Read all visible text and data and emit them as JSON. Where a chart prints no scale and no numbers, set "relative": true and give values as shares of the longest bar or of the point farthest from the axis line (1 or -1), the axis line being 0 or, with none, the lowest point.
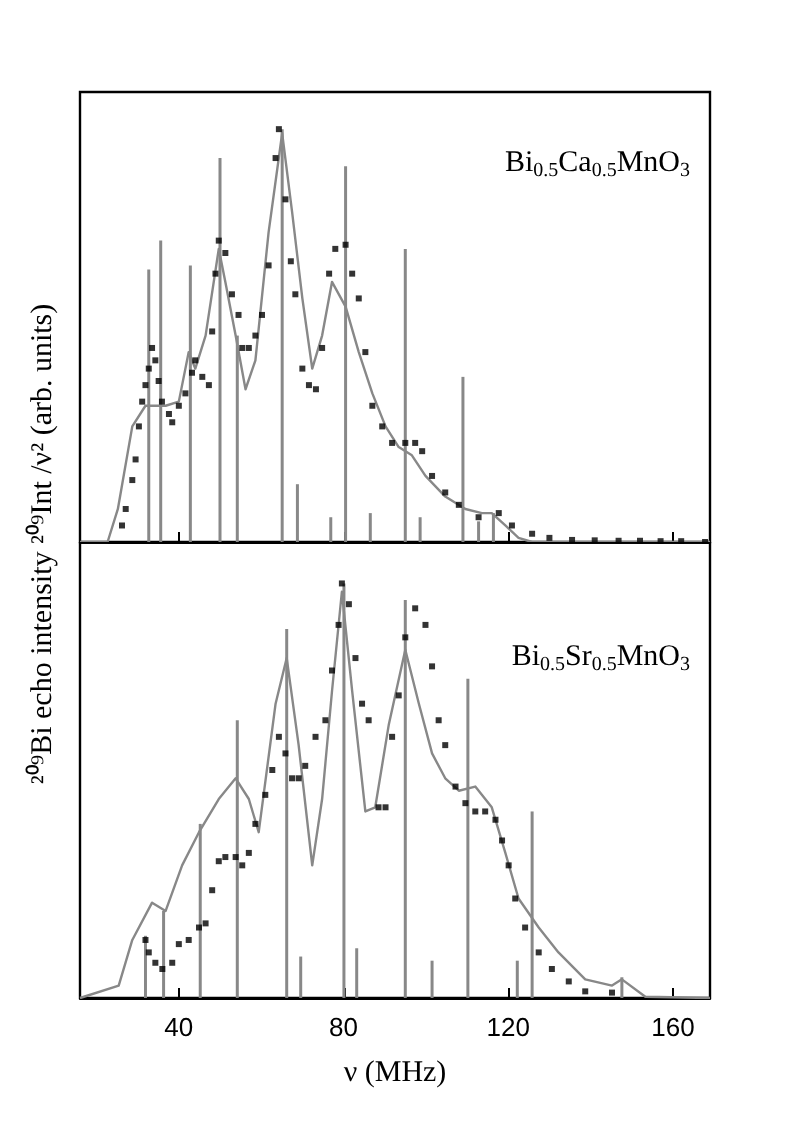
{
  "chart_data": [
    {
      "type": "scatter",
      "title": "Bi$_{0.5}$Ca$_{0.5}$MnO$_{3}$",
      "ylabel": "²⁰⁹Bi echo intensity ²⁰⁹Int /ν² (arb. units)",
      "relative": true,
      "xlim": [
        16,
        169
      ],
      "xticks": [
        40,
        80,
        120,
        160
      ],
      "tick_labels": false,
      "series": [
        {
          "type": "bar",
          "color": "#888888",
          "x": [
            32.7,
            35.6,
            42.8,
            50.0,
            54.2,
            65.1,
            68.8,
            76.9,
            80.5,
            86.5,
            95,
            98.6,
            109,
            112.8,
            116.4
          ],
          "values": [
            0.66,
            0.73,
            0.67,
            0.93,
            0.5,
            1,
            0.14,
            0.06,
            0.91,
            0.07,
            0.71,
            0.06,
            0.4,
            0.05,
            0.07
          ]
        },
        {
          "type": "line",
          "color": "#888888",
          "marker": "none",
          "line_style": "solid",
          "x": [
            16,
            22.7,
            25.2,
            28.7,
            31.9,
            36.8,
            40,
            42.4,
            44,
            46.5,
            49.7,
            51.3,
            53.8,
            56.2,
            58.6,
            61.8,
            65.1,
            67.5,
            70,
            72.4,
            74.8,
            77.2,
            80.5,
            83.7,
            87,
            90.2,
            93.4,
            96.6,
            99.9,
            104.7,
            109.6,
            113.6,
            116,
            119.3,
            122.5,
            125.8,
            169
          ],
          "values": [
            0,
            0,
            0.08,
            0.28,
            0.33,
            0.33,
            0.34,
            0.46,
            0.42,
            0.5,
            0.71,
            0.63,
            0.5,
            0.37,
            0.44,
            0.75,
            0.99,
            0.8,
            0.59,
            0.42,
            0.5,
            0.63,
            0.57,
            0.46,
            0.36,
            0.28,
            0.23,
            0.21,
            0.16,
            0.11,
            0.08,
            0.07,
            0.07,
            0.04,
            0.01,
            0,
            0
          ]
        },
        {
          "color": "#000000",
          "marker": "square",
          "x": [
            26.2,
            27.1,
            28.7,
            29.5,
            30.3,
            31.1,
            31.9,
            32.7,
            33.5,
            34.3,
            35.1,
            35.9,
            37.6,
            38.4,
            40,
            41.6,
            43.2,
            44,
            45.7,
            47.3,
            48.1,
            48.9,
            49.7,
            51.3,
            52.9,
            54.5,
            55.4,
            57,
            58.6,
            60.2,
            61.8,
            63.5,
            64.3,
            65.9,
            67.2,
            68.3,
            70,
            71.6,
            73.3,
            74.8,
            76.5,
            78,
            80.5,
            82.1,
            83.7,
            85.3,
            87,
            89.4,
            91.8,
            95,
            97.4,
            99.1,
            101.5,
            104.7,
            108,
            112.8,
            117.7,
            120.9,
            125.8,
            130,
            135.5,
            141,
            146.8,
            152,
            157,
            162,
            167.8
          ],
          "values": [
            0.04,
            0.08,
            0.15,
            0.2,
            0.28,
            0.34,
            0.38,
            0.42,
            0.47,
            0.44,
            0.39,
            0.34,
            0.31,
            0.29,
            0.33,
            0.36,
            0.41,
            0.44,
            0.4,
            0.38,
            0.51,
            0.65,
            0.73,
            0.7,
            0.6,
            0.55,
            0.47,
            0.47,
            0.5,
            0.55,
            0.67,
            0.93,
            1,
            0.83,
            0.68,
            0.6,
            0.42,
            0.38,
            0.37,
            0.47,
            0.65,
            0.71,
            0.72,
            0.65,
            0.59,
            0.46,
            0.33,
            0.28,
            0.24,
            0.24,
            0.24,
            0.22,
            0.16,
            0.12,
            0.09,
            0.06,
            0.07,
            0.04,
            0.02,
            0.01,
            0.005,
            0.004,
            0.003,
            0.003,
            0.002,
            0.002,
            0
          ]
        }
      ]
    },
    {
      "type": "scatter",
      "title": "Bi$_{0.5}$Sr$_{0.5}$MnO$_{3}$",
      "xlabel": "ν (MHz)",
      "relative": true,
      "xlim": [
        16,
        169
      ],
      "xticks": [
        40,
        80,
        120,
        160
      ],
      "tick_labels": "x",
      "series": [
        {
          "type": "bar",
          "color": "#888888",
          "x": [
            31.9,
            36.3,
            45.2,
            54.2,
            66.2,
            69.6,
            80.1,
            83.2,
            95,
            101.5,
            110.2,
            122.2,
            125.8,
            147.6
          ],
          "values": [
            0.15,
            0.21,
            0.42,
            0.67,
            0.89,
            0.1,
            1,
            0.12,
            0.96,
            0.09,
            0.77,
            0.09,
            0.45,
            0.05
          ]
        },
        {
          "type": "line",
          "color": "#888888",
          "marker": "none",
          "line_style": "solid",
          "x": [
            16,
            25.4,
            28.7,
            33.5,
            36.8,
            40.8,
            44.9,
            49.7,
            53.8,
            57,
            59.4,
            63.5,
            66.2,
            69.1,
            72.4,
            74.8,
            77.2,
            79.6,
            82.1,
            85.3,
            87.7,
            91,
            95,
            98.3,
            101.5,
            104.7,
            108,
            112,
            116,
            119.3,
            122.5,
            127.4,
            132.2,
            138.7,
            145.2,
            147.6,
            153.3,
            169
          ],
          "values": [
            0,
            0.03,
            0.14,
            0.23,
            0.21,
            0.32,
            0.4,
            0.48,
            0.53,
            0.48,
            0.4,
            0.71,
            0.82,
            0.61,
            0.32,
            0.48,
            0.74,
            0.98,
            0.74,
            0.45,
            0.46,
            0.66,
            0.84,
            0.71,
            0.59,
            0.53,
            0.5,
            0.51,
            0.46,
            0.35,
            0.24,
            0.17,
            0.11,
            0.045,
            0.03,
            0.045,
            0.003,
            0
          ]
        },
        {
          "color": "#000000",
          "marker": "square",
          "x": [
            31.9,
            32.7,
            34.3,
            36,
            38.4,
            40,
            42.4,
            44.9,
            46.5,
            48.1,
            49.7,
            51.3,
            53.8,
            55.4,
            57,
            58.6,
            61,
            62.7,
            64.3,
            65.9,
            67.5,
            69.1,
            70.7,
            73.2,
            75.6,
            77.2,
            78.8,
            79.6,
            81.3,
            82.9,
            84.5,
            86.1,
            88.5,
            90.2,
            91.8,
            93.4,
            95,
            97.4,
            99.9,
            101.5,
            103.1,
            104.7,
            107.2,
            109.6,
            112,
            114.4,
            116.9,
            118.5,
            120.1,
            121.7,
            124.1,
            127.4,
            130.6,
            134.7,
            138.7,
            145.2
          ],
          "values": [
            0.14,
            0.11,
            0.085,
            0.07,
            0.085,
            0.13,
            0.14,
            0.17,
            0.18,
            0.26,
            0.33,
            0.34,
            0.34,
            0.32,
            0.35,
            0.42,
            0.49,
            0.55,
            0.63,
            0.59,
            0.53,
            0.53,
            0.56,
            0.63,
            0.67,
            0.79,
            0.9,
            1,
            0.95,
            0.82,
            0.71,
            0.67,
            0.46,
            0.46,
            0.63,
            0.73,
            0.87,
            0.94,
            0.9,
            0.8,
            0.67,
            0.61,
            0.51,
            0.47,
            0.45,
            0.45,
            0.43,
            0.38,
            0.32,
            0.24,
            0.17,
            0.11,
            0.07,
            0.04,
            0.016,
            0.013
          ]
        }
      ]
    }
  ]
}
